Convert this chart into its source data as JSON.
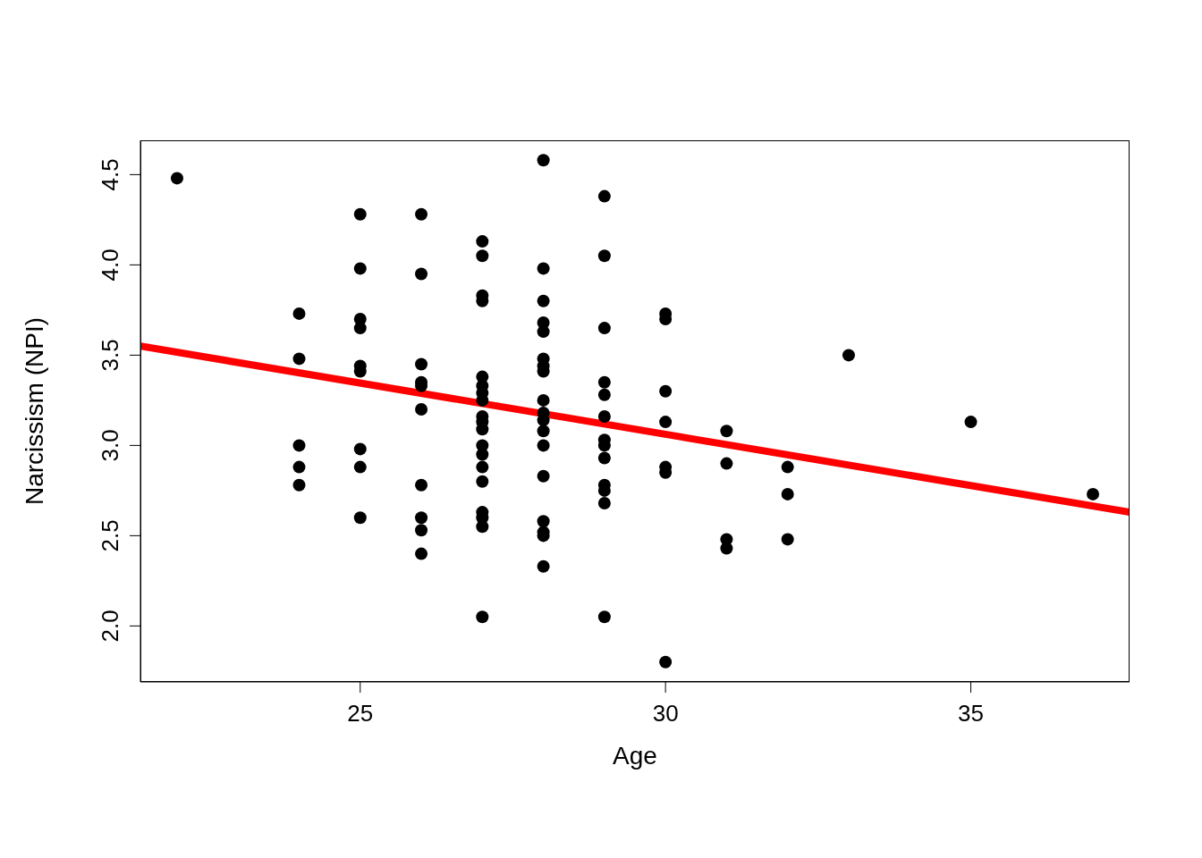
{
  "chart_data": {
    "type": "scatter",
    "xlabel": "Age",
    "ylabel": "Narcissism (NPI)",
    "xlim": [
      21.4,
      37.6
    ],
    "ylim": [
      1.69,
      4.69
    ],
    "xticks": [
      25,
      30,
      35
    ],
    "yticks": [
      {
        "value": 2,
        "label": "2.0"
      },
      {
        "value": 2.5,
        "label": "2.5"
      },
      {
        "value": 3,
        "label": "3.0"
      },
      {
        "value": 3.5,
        "label": "3.5"
      },
      {
        "value": 4,
        "label": "4.0"
      },
      {
        "value": 4.5,
        "label": "4.5"
      }
    ],
    "series": [
      {
        "color": "#000000",
        "marker": "circle",
        "x": [
          22,
          24,
          24,
          24,
          24,
          24,
          25,
          25,
          25,
          25,
          25,
          25,
          25,
          25,
          25,
          26,
          26,
          26,
          26,
          26,
          26,
          26,
          26,
          26,
          26,
          27,
          27,
          27,
          27,
          27,
          27,
          27,
          27,
          27,
          27,
          27,
          27,
          27,
          27,
          27,
          27,
          27,
          27,
          27,
          28,
          28,
          28,
          28,
          28,
          28,
          28,
          28,
          28,
          28,
          28,
          28,
          28,
          28,
          28,
          28,
          28,
          28,
          29,
          29,
          29,
          29,
          29,
          29,
          29,
          29,
          29,
          29,
          29,
          29,
          29,
          30,
          30,
          30,
          30,
          30,
          30,
          30,
          31,
          31,
          31,
          31,
          32,
          32,
          32,
          33,
          35,
          37
        ],
        "values": [
          4.48,
          3.73,
          3.48,
          3.0,
          2.88,
          2.78,
          4.28,
          3.98,
          3.7,
          3.65,
          3.44,
          3.41,
          2.98,
          2.88,
          2.6,
          4.28,
          3.95,
          3.45,
          3.35,
          3.33,
          3.2,
          2.78,
          2.6,
          2.53,
          2.4,
          4.13,
          4.05,
          3.83,
          3.8,
          3.38,
          3.33,
          3.29,
          3.25,
          3.16,
          3.13,
          3.09,
          3.0,
          2.95,
          2.88,
          2.8,
          2.63,
          2.6,
          2.55,
          2.05,
          4.58,
          3.98,
          3.8,
          3.68,
          3.63,
          3.48,
          3.44,
          3.41,
          3.25,
          3.18,
          3.14,
          3.08,
          3.0,
          2.83,
          2.58,
          2.52,
          2.5,
          2.33,
          4.38,
          4.05,
          3.65,
          3.35,
          3.28,
          3.16,
          3.03,
          3.0,
          2.93,
          2.78,
          2.75,
          2.68,
          2.05,
          3.73,
          3.7,
          3.3,
          3.13,
          2.88,
          2.85,
          1.8,
          3.08,
          2.9,
          2.48,
          2.43,
          2.88,
          2.73,
          2.48,
          3.5,
          3.13,
          2.73
        ]
      },
      {
        "type": "line",
        "color": "#ff0000",
        "marker": "none",
        "x": [
          21.4,
          37.6
        ],
        "values": [
          3.55,
          2.63
        ]
      }
    ]
  }
}
